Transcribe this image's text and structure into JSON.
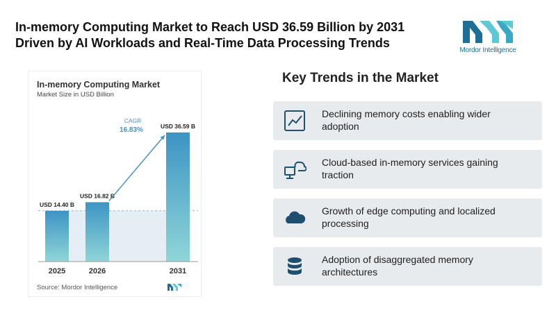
{
  "headline": {
    "line1": "In-memory Computing Market to Reach USD 36.59 Billion by 2031",
    "line2": "Driven by AI Workloads and Real-Time Data Processing Trends"
  },
  "brand": {
    "name": "Mordor Intelligence",
    "color_dark": "#1d6f97",
    "color_light": "#5ec9d4"
  },
  "chart_data": {
    "type": "bar",
    "title": "In-memory Computing Market",
    "subtitle": "Market Size in USD Billion",
    "categories": [
      "2025",
      "2026",
      "2031"
    ],
    "values": [
      14.4,
      16.82,
      36.59
    ],
    "data_labels": [
      "USD 14.40 B",
      "USD 16.82 B",
      "USD 36.59 B"
    ],
    "cagr_label": "CAGR",
    "cagr_value": "16.83%",
    "ylim": [
      0,
      40
    ],
    "grid": false,
    "source": "Source: Mordor Intelligence",
    "colors": {
      "bar_top": "#3d94c4",
      "bar_bottom": "#8fd6d8",
      "shade": "#e6eef5",
      "arrow": "#4a90c4",
      "label": "#222222",
      "cagr": "#4a90c4"
    }
  },
  "trends": {
    "title": "Key Trends in the Market",
    "items": [
      {
        "text": "Declining memory costs enabling wider adoption",
        "icon": "line-chart-icon"
      },
      {
        "text": "Cloud-based in-memory services gaining traction",
        "icon": "cloud-network-icon"
      },
      {
        "text": "Growth of edge computing and localized processing",
        "icon": "cloud-icon"
      },
      {
        "text": "Adoption of disaggregated memory architectures",
        "icon": "database-icon"
      }
    ]
  }
}
